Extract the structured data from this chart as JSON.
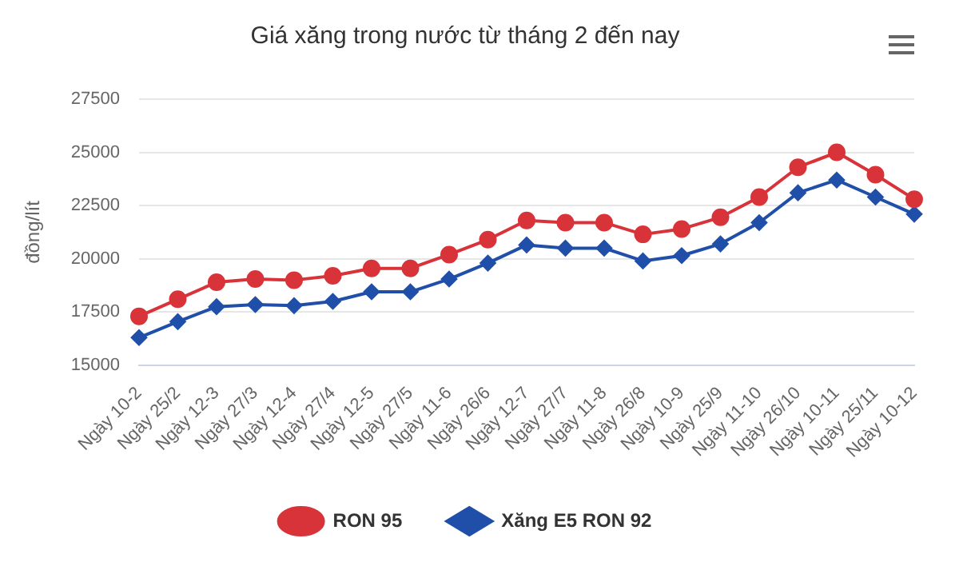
{
  "chart_data": {
    "type": "line",
    "title": "Giá xăng trong nước từ tháng 2 đến nay",
    "ylabel": "đồng/lít",
    "categories": [
      "Ngày 10-2",
      "Ngày 25/2",
      "Ngày 12-3",
      "Ngày 27/3",
      "Ngày 12-4",
      "Ngày 27/4",
      "Ngày 12-5",
      "Ngày 27/5",
      "Ngày 11-6",
      "Ngày 26/6",
      "Ngày 12-7",
      "Ngày 27/7",
      "Ngày 11-8",
      "Ngày 26/8",
      "Ngày 10-9",
      "Ngày 25/9",
      "Ngày 11-10",
      "Ngày 26/10",
      "Ngày 10-11",
      "Ngày 25/11",
      "Ngày 10-12"
    ],
    "series": [
      {
        "name": "RON 95",
        "color": "#d9333a",
        "marker": "circle",
        "values": [
          17300,
          18100,
          18900,
          19050,
          19000,
          19200,
          19550,
          19550,
          20200,
          20900,
          21800,
          21700,
          21700,
          21150,
          21400,
          21950,
          22900,
          24300,
          25000,
          23950,
          22800
        ]
      },
      {
        "name": "Xăng E5 RON 92",
        "color": "#1f4fa8",
        "marker": "diamond",
        "values": [
          16300,
          17050,
          17750,
          17850,
          17800,
          18000,
          18450,
          18450,
          19050,
          19800,
          20650,
          20500,
          20500,
          19900,
          20150,
          20700,
          21700,
          23100,
          23700,
          22900,
          22100
        ]
      }
    ],
    "ylim": [
      15000,
      27500
    ],
    "yticks": [
      15000,
      17500,
      20000,
      22500,
      25000,
      27500
    ],
    "grid": "y",
    "legend": "bottom"
  }
}
